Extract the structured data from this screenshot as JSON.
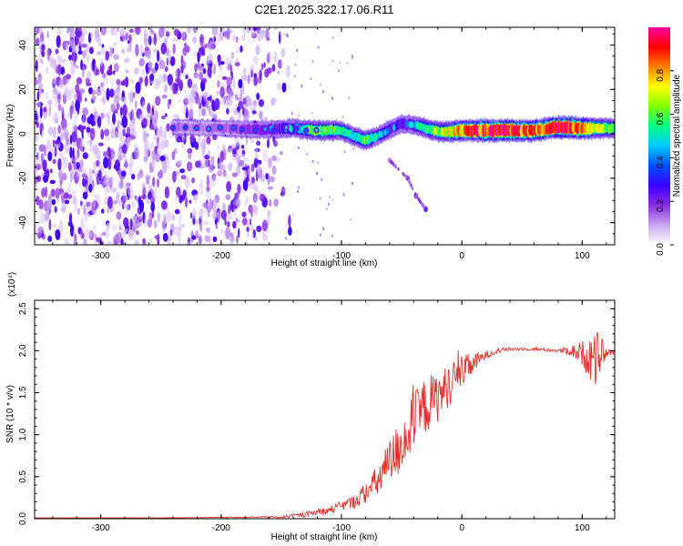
{
  "figure_title": "C2E1.2025.322.17.06.R11",
  "chart_data": [
    {
      "type": "heatmap",
      "title": "C2E1.2025.322.17.06.R11",
      "xlabel": "Height of straight line (km)",
      "ylabel": "Frequency (Hz)",
      "xlim": [
        -355,
        127
      ],
      "ylim": [
        -50,
        48
      ],
      "x_ticks": [
        -300,
        -200,
        -100,
        0,
        100
      ],
      "x_tick_labels": [
        "-300",
        "-200",
        "-100",
        "0",
        "100"
      ],
      "y_ticks": [
        -40,
        -20,
        0,
        20,
        40
      ],
      "y_tick_labels": [
        "-40",
        "-20",
        "0",
        "20",
        "40"
      ],
      "colorbar": {
        "label": "Normalized spectral amplitude",
        "range": [
          0,
          1
        ],
        "ticks": [
          0,
          0.2,
          0.4,
          0.6,
          0.8
        ],
        "tick_labels": [
          "0.0",
          "0.2",
          "0.4",
          "0.6",
          "0.8"
        ],
        "colormap": [
          "#ffffff",
          "#c8a8f0",
          "#8a2be2",
          "#3a00ff",
          "#0050ff",
          "#00c8ff",
          "#00ff88",
          "#7fff00",
          "#ffff00",
          "#ff8000",
          "#ff0000",
          "#ff00a0"
        ]
      },
      "noise_region": {
        "x_start": -355,
        "x_end": -150,
        "freq_range": [
          -50,
          48
        ]
      },
      "carrier_track": [
        {
          "x": -240,
          "freq": 3.0,
          "amp": 0.25
        },
        {
          "x": -220,
          "freq": 2.8,
          "amp": 0.22
        },
        {
          "x": -200,
          "freq": 2.5,
          "amp": 0.25
        },
        {
          "x": -180,
          "freq": 2.0,
          "amp": 0.32
        },
        {
          "x": -160,
          "freq": 2.0,
          "amp": 0.4
        },
        {
          "x": -140,
          "freq": 2.5,
          "amp": 0.45
        },
        {
          "x": -120,
          "freq": 1.5,
          "amp": 0.6
        },
        {
          "x": -100,
          "freq": 1.5,
          "amp": 0.55
        },
        {
          "x": -90,
          "freq": -1.0,
          "amp": 0.5
        },
        {
          "x": -80,
          "freq": -3.0,
          "amp": 0.6
        },
        {
          "x": -70,
          "freq": -1.0,
          "amp": 0.45
        },
        {
          "x": -60,
          "freq": 2.0,
          "amp": 0.45
        },
        {
          "x": -50,
          "freq": 4.5,
          "amp": 0.4
        },
        {
          "x": -40,
          "freq": 4.0,
          "amp": 0.45
        },
        {
          "x": -30,
          "freq": 2.5,
          "amp": 0.55
        },
        {
          "x": -20,
          "freq": 1.0,
          "amp": 0.65
        },
        {
          "x": -10,
          "freq": 1.0,
          "amp": 0.7
        },
        {
          "x": 0,
          "freq": 1.5,
          "amp": 0.8
        },
        {
          "x": 20,
          "freq": 1.5,
          "amp": 0.9
        },
        {
          "x": 40,
          "freq": 1.5,
          "amp": 0.9
        },
        {
          "x": 60,
          "freq": 1.5,
          "amp": 0.8
        },
        {
          "x": 80,
          "freq": 3.0,
          "amp": 0.9
        },
        {
          "x": 100,
          "freq": 2.5,
          "amp": 0.85
        },
        {
          "x": 120,
          "freq": 2.5,
          "amp": 0.6
        }
      ],
      "secondary_branch": [
        {
          "x": -60,
          "freq": -12
        },
        {
          "x": -45,
          "freq": -20
        },
        {
          "x": -38,
          "freq": -28
        },
        {
          "x": -30,
          "freq": -34
        }
      ]
    },
    {
      "type": "line",
      "xlabel": "Height of straight line (km)",
      "ylabel": "SNR (10 * v/v)",
      "y_multiplier": "(x10⁴)",
      "xlim": [
        -355,
        127
      ],
      "ylim": [
        0,
        2.6
      ],
      "x_ticks": [
        -300,
        -200,
        -100,
        0,
        100
      ],
      "x_tick_labels": [
        "-300",
        "-200",
        "-100",
        "0",
        "100"
      ],
      "y_ticks": [
        0,
        0.5,
        1.0,
        1.5,
        2.0,
        2.5
      ],
      "y_tick_labels": [
        "0.0",
        "0.5",
        "1.0",
        "1.5",
        "2.0",
        "2.5"
      ],
      "series": [
        {
          "name": "SNR",
          "color": "#e8302c",
          "x": [
            -355,
            -300,
            -250,
            -200,
            -150,
            -130,
            -110,
            -100,
            -90,
            -80,
            -70,
            -60,
            -50,
            -40,
            -30,
            -20,
            -10,
            0,
            10,
            20,
            30,
            40,
            60,
            80,
            90,
            100,
            110,
            115,
            120,
            127
          ],
          "y": [
            0.01,
            0.01,
            0.01,
            0.015,
            0.02,
            0.05,
            0.1,
            0.15,
            0.2,
            0.3,
            0.45,
            0.65,
            0.9,
            1.15,
            1.35,
            1.45,
            1.6,
            1.75,
            1.85,
            1.95,
            2.0,
            2.02,
            2.02,
            2.0,
            2.0,
            1.97,
            1.9,
            1.95,
            1.97,
            1.98
          ],
          "noise": [
            0,
            0,
            0,
            0.005,
            0.01,
            0.03,
            0.05,
            0.06,
            0.08,
            0.12,
            0.2,
            0.3,
            0.35,
            0.35,
            0.35,
            0.3,
            0.25,
            0.2,
            0.12,
            0.05,
            0.03,
            0.02,
            0.02,
            0.02,
            0.06,
            0.15,
            0.35,
            0.25,
            0.04,
            0.02
          ]
        }
      ]
    }
  ]
}
